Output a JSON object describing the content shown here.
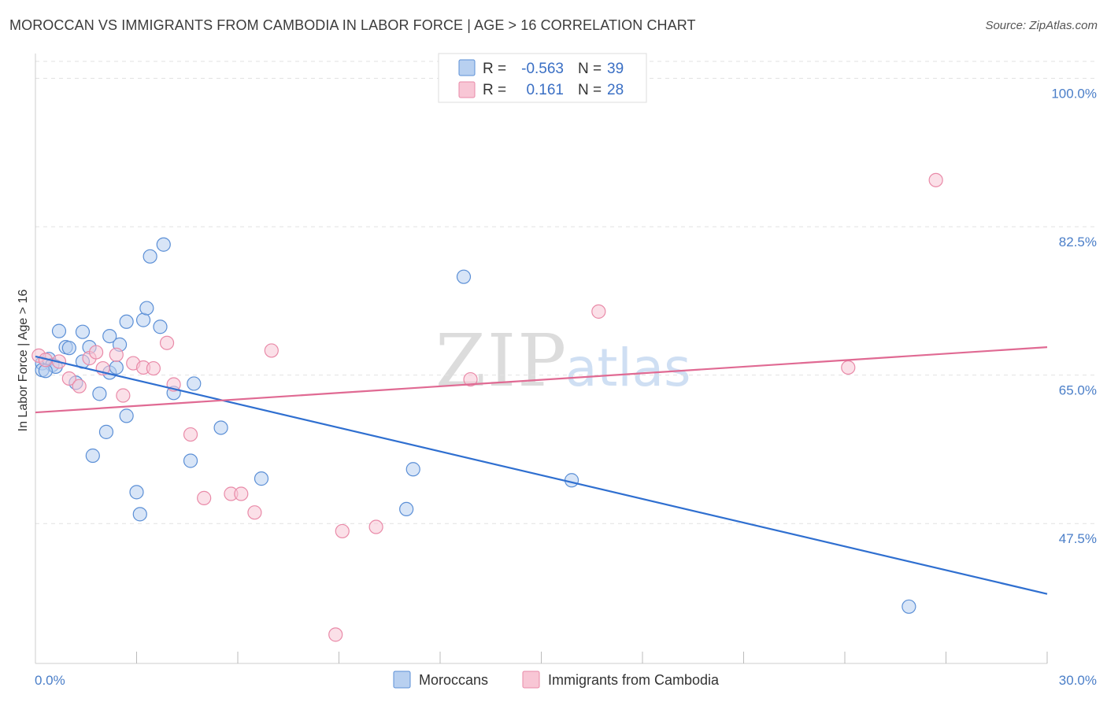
{
  "chart_data": {
    "type": "scatter",
    "title": "MOROCCAN VS IMMIGRANTS FROM CAMBODIA IN LABOR FORCE | AGE > 16 CORRELATION CHART",
    "source": "Source: ZipAtlas.com",
    "ylabel": "In Labor Force | Age > 16",
    "xlabel": "",
    "xlim": [
      0,
      30
    ],
    "ylim": [
      31.0,
      102.0
    ],
    "x_tick_labels": [
      "0.0%",
      "30.0%"
    ],
    "y_ticks": [
      {
        "value": 100.0,
        "label": "100.0%"
      },
      {
        "value": 82.5,
        "label": "82.5%"
      },
      {
        "value": 65.0,
        "label": "65.0%"
      },
      {
        "value": 47.5,
        "label": "47.5%"
      }
    ],
    "watermark": {
      "part1": "ZIP",
      "part2": "atlas"
    },
    "legend": {
      "r_label": "R =",
      "n_label": "N =",
      "entries": [
        {
          "r": "-0.563",
          "n": "39"
        },
        {
          "r": "0.161",
          "n": "28"
        }
      ]
    },
    "series": [
      {
        "name": "Moroccans",
        "color": "#5b8fd6",
        "fill": "#b8d0f0",
        "line_color": "#2f6fd0",
        "trend": {
          "x": [
            0.0,
            30.0
          ],
          "y": [
            67.2,
            39.2
          ]
        },
        "points": [
          {
            "x": 0.2,
            "y": 66.4
          },
          {
            "x": 0.4,
            "y": 66.9
          },
          {
            "x": 0.5,
            "y": 66.2
          },
          {
            "x": 0.6,
            "y": 66.0
          },
          {
            "x": 0.2,
            "y": 65.6
          },
          {
            "x": 0.3,
            "y": 65.5
          },
          {
            "x": 0.7,
            "y": 70.2
          },
          {
            "x": 0.9,
            "y": 68.3
          },
          {
            "x": 1.0,
            "y": 68.2
          },
          {
            "x": 1.4,
            "y": 70.1
          },
          {
            "x": 1.6,
            "y": 68.3
          },
          {
            "x": 1.4,
            "y": 66.6
          },
          {
            "x": 2.2,
            "y": 69.6
          },
          {
            "x": 2.5,
            "y": 68.6
          },
          {
            "x": 2.2,
            "y": 65.3
          },
          {
            "x": 2.4,
            "y": 65.9
          },
          {
            "x": 1.2,
            "y": 64.1
          },
          {
            "x": 1.9,
            "y": 62.8
          },
          {
            "x": 2.7,
            "y": 71.3
          },
          {
            "x": 3.2,
            "y": 71.5
          },
          {
            "x": 3.3,
            "y": 72.9
          },
          {
            "x": 3.7,
            "y": 70.7
          },
          {
            "x": 3.4,
            "y": 79.0
          },
          {
            "x": 3.8,
            "y": 80.4
          },
          {
            "x": 2.7,
            "y": 60.2
          },
          {
            "x": 2.1,
            "y": 58.3
          },
          {
            "x": 1.7,
            "y": 55.5
          },
          {
            "x": 3.0,
            "y": 51.2
          },
          {
            "x": 3.1,
            "y": 48.6
          },
          {
            "x": 4.1,
            "y": 62.9
          },
          {
            "x": 4.7,
            "y": 64.0
          },
          {
            "x": 4.6,
            "y": 54.9
          },
          {
            "x": 5.5,
            "y": 58.8
          },
          {
            "x": 6.7,
            "y": 52.8
          },
          {
            "x": 11.2,
            "y": 53.9
          },
          {
            "x": 12.7,
            "y": 76.6
          },
          {
            "x": 11.0,
            "y": 49.2
          },
          {
            "x": 15.9,
            "y": 52.6
          },
          {
            "x": 25.9,
            "y": 37.7
          }
        ]
      },
      {
        "name": "Immigrants from Cambodia",
        "color": "#e98aa8",
        "fill": "#f8c6d5",
        "line_color": "#e06a93",
        "trend": {
          "x": [
            0.0,
            30.0
          ],
          "y": [
            60.6,
            68.3
          ]
        },
        "points": [
          {
            "x": 0.1,
            "y": 67.3
          },
          {
            "x": 0.3,
            "y": 66.8
          },
          {
            "x": 0.7,
            "y": 66.6
          },
          {
            "x": 1.0,
            "y": 64.6
          },
          {
            "x": 1.3,
            "y": 63.7
          },
          {
            "x": 1.6,
            "y": 67.0
          },
          {
            "x": 1.8,
            "y": 67.7
          },
          {
            "x": 2.0,
            "y": 65.8
          },
          {
            "x": 2.4,
            "y": 67.4
          },
          {
            "x": 2.6,
            "y": 62.6
          },
          {
            "x": 2.9,
            "y": 66.4
          },
          {
            "x": 3.2,
            "y": 65.9
          },
          {
            "x": 3.5,
            "y": 65.8
          },
          {
            "x": 3.9,
            "y": 68.8
          },
          {
            "x": 4.1,
            "y": 63.9
          },
          {
            "x": 4.6,
            "y": 58.0
          },
          {
            "x": 5.0,
            "y": 50.5
          },
          {
            "x": 5.8,
            "y": 51.0
          },
          {
            "x": 6.1,
            "y": 51.0
          },
          {
            "x": 6.5,
            "y": 48.8
          },
          {
            "x": 7.0,
            "y": 67.9
          },
          {
            "x": 9.1,
            "y": 46.6
          },
          {
            "x": 10.1,
            "y": 47.1
          },
          {
            "x": 12.9,
            "y": 64.5
          },
          {
            "x": 16.7,
            "y": 72.5
          },
          {
            "x": 24.1,
            "y": 65.9
          },
          {
            "x": 26.7,
            "y": 88.0
          },
          {
            "x": 8.9,
            "y": 34.4
          }
        ]
      }
    ]
  }
}
